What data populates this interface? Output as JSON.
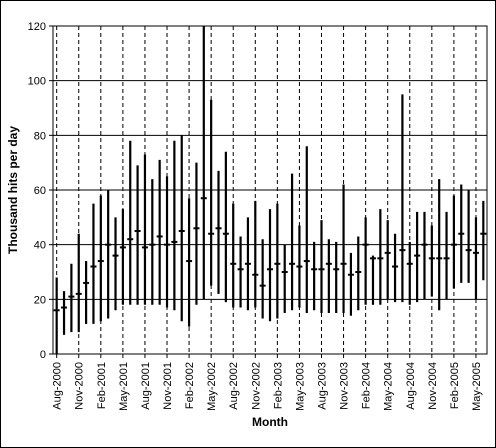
{
  "chart_data": {
    "type": "range-bar",
    "title": "",
    "xlabel": "Month",
    "ylabel": "Thousand hits per day",
    "ylim": [
      0,
      120
    ],
    "yticks": [
      0,
      20,
      40,
      60,
      80,
      100,
      120
    ],
    "grid": {
      "horizontal": "solid",
      "vertical": "dashed"
    },
    "legend": "none",
    "xtick_labels": [
      "Aug-2000",
      "Nov-2000",
      "Feb-2001",
      "May-2001",
      "Aug-2001",
      "Nov-2001",
      "Feb-2002",
      "May-2002",
      "Aug-2002",
      "Nov-2002",
      "Feb-2003",
      "May-2003",
      "Aug-2003",
      "Nov-2003",
      "Feb-2004",
      "May-2004",
      "Aug-2004",
      "Nov-2004",
      "Feb-2005",
      "May-2005"
    ],
    "categories": [
      "Aug-2000",
      "Sep-2000",
      "Oct-2000",
      "Nov-2000",
      "Dec-2000",
      "Jan-2001",
      "Feb-2001",
      "Mar-2001",
      "Apr-2001",
      "May-2001",
      "Jun-2001",
      "Jul-2001",
      "Aug-2001",
      "Sep-2001",
      "Oct-2001",
      "Nov-2001",
      "Dec-2001",
      "Jan-2002",
      "Feb-2002",
      "Mar-2002",
      "Apr-2002",
      "May-2002",
      "Jun-2002",
      "Jul-2002",
      "Aug-2002",
      "Sep-2002",
      "Oct-2002",
      "Nov-2002",
      "Dec-2002",
      "Jan-2003",
      "Feb-2003",
      "Mar-2003",
      "Apr-2003",
      "May-2003",
      "Jun-2003",
      "Jul-2003",
      "Aug-2003",
      "Sep-2003",
      "Oct-2003",
      "Nov-2003",
      "Dec-2003",
      "Jan-2004",
      "Feb-2004",
      "Mar-2004",
      "Apr-2004",
      "May-2004",
      "Jun-2004",
      "Jul-2004",
      "Aug-2004",
      "Sep-2004",
      "Oct-2004",
      "Nov-2004",
      "Dec-2004",
      "Jan-2005",
      "Feb-2005",
      "Mar-2005",
      "Apr-2005",
      "May-2005",
      "Jun-2005"
    ],
    "series": [
      {
        "low": [
          0,
          7,
          8,
          8,
          11,
          11,
          12,
          13,
          16,
          18,
          18,
          18,
          18,
          18,
          18,
          17,
          16,
          12,
          10,
          18,
          20,
          25,
          22,
          19,
          17,
          17,
          16,
          17,
          13,
          12,
          13,
          15,
          16,
          17,
          15,
          16,
          15,
          15,
          15,
          15,
          14,
          16,
          18,
          18,
          18,
          20,
          19,
          19,
          18,
          19,
          20,
          21,
          16,
          20,
          24,
          26,
          26,
          20,
          27
        ],
        "high": [
          28,
          23,
          33,
          44,
          34,
          55,
          58,
          60,
          50,
          53,
          78,
          69,
          73,
          64,
          71,
          65,
          78,
          80,
          57,
          70,
          120,
          93,
          67,
          74,
          55,
          43,
          50,
          56,
          42,
          53,
          55,
          40,
          66,
          47,
          76,
          41,
          49,
          42,
          41,
          62,
          37,
          43,
          50,
          36,
          53,
          49,
          44,
          95,
          41,
          52,
          52,
          47,
          64,
          52,
          58,
          62,
          60,
          50,
          56
        ],
        "mid": [
          16,
          17,
          21,
          22,
          26,
          32,
          34,
          40,
          36,
          39,
          42,
          45,
          39,
          40,
          43,
          40,
          41,
          45,
          34,
          46,
          57,
          44,
          46,
          44,
          33,
          31,
          33,
          29,
          25,
          31,
          33,
          30,
          33,
          32,
          34,
          31,
          31,
          33,
          31,
          33,
          29,
          30,
          40,
          35,
          35,
          37,
          32,
          38,
          33,
          36,
          40,
          35,
          35,
          35,
          40,
          44,
          38,
          37,
          44
        ]
      }
    ]
  }
}
